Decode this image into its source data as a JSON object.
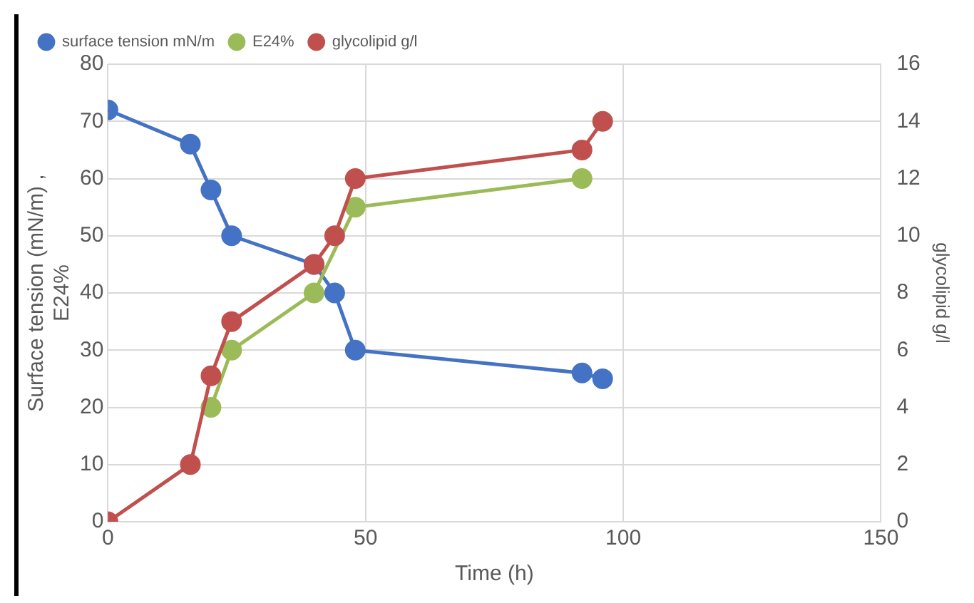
{
  "chart_data": {
    "type": "line",
    "xlabel": "Time (h)",
    "ylabel": "Surface tension (mN/m) ,\nE24%",
    "y2label": "glycolipid g/l",
    "xlim": [
      0,
      150
    ],
    "xticks": [
      0,
      50,
      100,
      150
    ],
    "ylim": [
      0,
      80
    ],
    "yticks": [
      0,
      10,
      20,
      30,
      40,
      50,
      60,
      70,
      80
    ],
    "y2lim": [
      0,
      16
    ],
    "y2ticks": [
      0,
      2,
      4,
      6,
      8,
      10,
      12,
      14,
      16
    ],
    "grid": true,
    "legend": "top",
    "marker": "circle",
    "line_style": "solid",
    "series": [
      {
        "name": "surface tension mN/m",
        "color": "#4472c4",
        "x": [
          0,
          16,
          20,
          24,
          40,
          44,
          48,
          92,
          96
        ],
        "values": [
          72,
          66,
          58,
          50,
          45,
          40,
          30,
          26,
          25
        ]
      },
      {
        "name": "E24%",
        "color": "#9bbb59",
        "x": [
          20,
          24,
          40,
          48,
          92
        ],
        "values": [
          20,
          30,
          40,
          55,
          60
        ]
      },
      {
        "name": "glycolipid g/l",
        "color": "#c0504d",
        "axis": "y2",
        "x": [
          0,
          16,
          20,
          24,
          40,
          44,
          48,
          92,
          96
        ],
        "values": [
          0,
          2,
          5.1,
          7,
          9,
          10,
          12,
          13,
          14
        ]
      }
    ]
  }
}
